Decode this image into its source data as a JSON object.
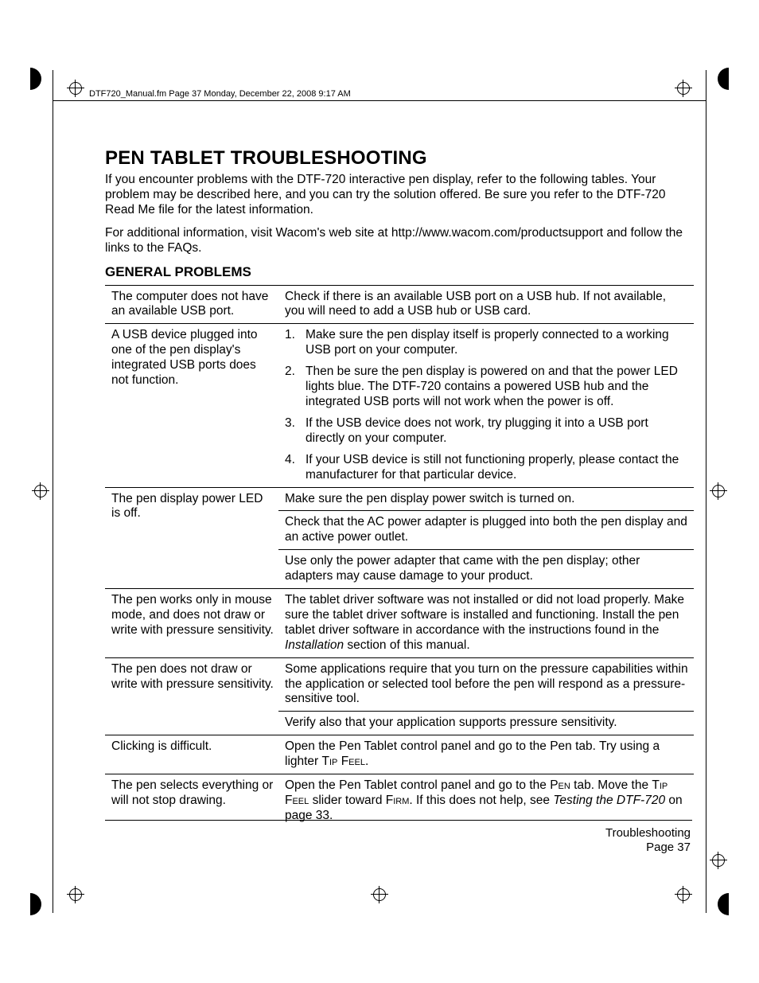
{
  "runhead": "DTF720_Manual.fm  Page 37  Monday, December 22, 2008  9:17 AM",
  "title": "PEN TABLET TROUBLESHOOTING",
  "intro1": "If you encounter problems with the DTF-720 interactive pen display, refer to the following tables. Your problem may be described here, and you can try the solution offered.  Be sure you refer to the DTF-720 Read Me file for the latest information.",
  "intro2": "For additional information, visit Wacom's web site at http://www.wacom.com/productsupport and follow the links to the FAQs.",
  "subhead": "GENERAL PROBLEMS",
  "rows": [
    {
      "problem": "The computer does not have an available USB port.",
      "solutions": [
        "Check if there is an available USB port on a USB hub.  If not available, you will need to add a USB hub or USB card."
      ]
    },
    {
      "problem": "A USB device plugged into one of the pen display's integrated USB ports does not function.",
      "solutions": [
        {
          "type": "ol",
          "items": [
            "Make sure the pen display itself is properly connected to a working USB port on your computer.",
            "Then be sure the pen display is powered on and that the power LED lights blue.  The DTF-720 contains a powered USB hub and the integrated USB ports will not work when the power is off.",
            "If the USB device does not work, try plugging it into a USB port directly on your computer.",
            "If your USB device is still not functioning properly, please contact the manufacturer for that particular device."
          ]
        }
      ]
    },
    {
      "problem": "The pen display power LED is off.",
      "solutions": [
        "Make sure the pen display power switch is turned on.",
        "Check that the AC power adapter is plugged into both the pen display and an active power outlet.",
        "Use only the power adapter that came with the pen display; other adapters may cause damage to your product."
      ]
    },
    {
      "problem": "The pen works only in mouse mode, and does not draw or write with pressure sensitivity.",
      "solutions": [
        {
          "type": "rich",
          "parts": [
            "The tablet driver software was not installed or did not load properly. Make sure the tablet driver software is installed and functioning. Install the pen tablet driver software in accordance with the instructions found in the ",
            {
              "ital": "Installation"
            },
            " section of this manual."
          ]
        }
      ]
    },
    {
      "problem": "The pen does not draw or write with pressure sensitivity.",
      "solutions": [
        "Some applications require that you turn on the pressure capabilities within the application or selected tool before the pen will respond as a pressure-sensitive tool.",
        "Verify also that your application supports pressure sensitivity."
      ]
    },
    {
      "problem": "Clicking is difficult.",
      "solutions": [
        {
          "type": "rich",
          "parts": [
            "Open the Pen Tablet control panel and go to the Pen tab.  Try using a lighter ",
            {
              "sc": "Tip Feel"
            },
            "."
          ]
        }
      ]
    },
    {
      "problem": "The pen selects everything or will not stop drawing.",
      "solutions": [
        {
          "type": "rich",
          "parts": [
            "Open the Pen Tablet control panel and go to the ",
            {
              "sc": "Pen"
            },
            " tab.  Move the ",
            {
              "sc": "Tip Feel"
            },
            " slider toward ",
            {
              "sc": "Firm"
            },
            ".  If this does not help, see ",
            {
              "ital": "Testing the DTF-720"
            },
            " on page 33."
          ]
        }
      ]
    }
  ],
  "footer1": "Troubleshooting",
  "footer2": "Page  37"
}
